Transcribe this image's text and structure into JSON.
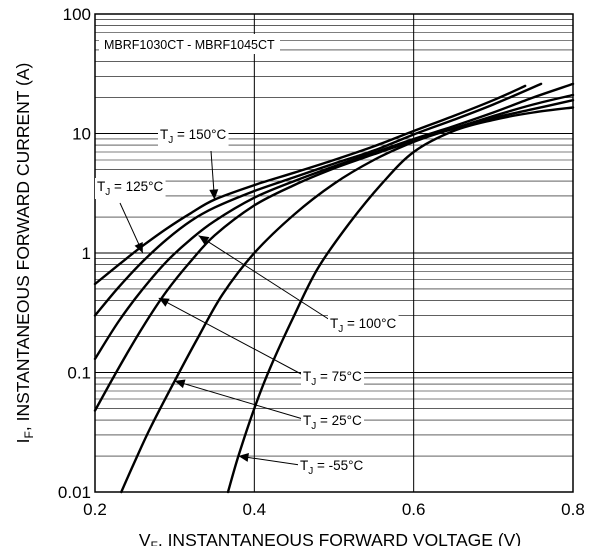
{
  "chart_data": {
    "type": "line",
    "title": "MBRF1030CT - MBRF1045CT",
    "xlabel": {
      "main": "V",
      "sub": "F",
      "rest": ", INSTANTANEOUS FORWARD VOLTAGE (V)"
    },
    "ylabel": {
      "main": "I",
      "sub": "F",
      "rest": ", INSTANTANEOUS FORWARD CURRENT (A)"
    },
    "xlim": [
      0.2,
      0.8
    ],
    "ylim": [
      0.01,
      100
    ],
    "yscale": "log",
    "grid": true,
    "x_ticks": [
      "0.2",
      "0.4",
      "0.6",
      "0.8"
    ],
    "y_ticks": [
      "0.01",
      "0.1",
      "1",
      "10",
      "100"
    ],
    "series": [
      {
        "name": "T_J = 150°C",
        "label": {
          "pre": "T",
          "sub": "J",
          "post": " = 150°C"
        },
        "points": [
          [
            0.2,
            0.55
          ],
          [
            0.23,
            0.8
          ],
          [
            0.26,
            1.15
          ],
          [
            0.29,
            1.6
          ],
          [
            0.32,
            2.15
          ],
          [
            0.35,
            2.8
          ],
          [
            0.4,
            3.7
          ],
          [
            0.45,
            4.7
          ],
          [
            0.5,
            6.0
          ],
          [
            0.55,
            7.8
          ],
          [
            0.6,
            10.5
          ],
          [
            0.65,
            14
          ],
          [
            0.7,
            19
          ],
          [
            0.74,
            25
          ]
        ]
      },
      {
        "name": "T_J = 125°C",
        "label": {
          "pre": "T",
          "sub": "J",
          "post": " = 125°C"
        },
        "points": [
          [
            0.2,
            0.3
          ],
          [
            0.23,
            0.52
          ],
          [
            0.26,
            0.85
          ],
          [
            0.29,
            1.3
          ],
          [
            0.32,
            1.85
          ],
          [
            0.35,
            2.4
          ],
          [
            0.4,
            3.3
          ],
          [
            0.45,
            4.3
          ],
          [
            0.5,
            5.6
          ],
          [
            0.55,
            7.2
          ],
          [
            0.6,
            9.8
          ],
          [
            0.65,
            13
          ],
          [
            0.7,
            17.5
          ],
          [
            0.76,
            26
          ]
        ]
      },
      {
        "name": "T_J = 100°C",
        "label": {
          "pre": "T",
          "sub": "J",
          "post": " = 100°C"
        },
        "points": [
          [
            0.2,
            0.13
          ],
          [
            0.23,
            0.27
          ],
          [
            0.26,
            0.5
          ],
          [
            0.29,
            0.85
          ],
          [
            0.32,
            1.3
          ],
          [
            0.35,
            1.85
          ],
          [
            0.4,
            2.9
          ],
          [
            0.45,
            4.0
          ],
          [
            0.5,
            5.3
          ],
          [
            0.55,
            6.9
          ],
          [
            0.6,
            9.0
          ],
          [
            0.65,
            11.5
          ],
          [
            0.7,
            15
          ],
          [
            0.75,
            20
          ],
          [
            0.8,
            26
          ]
        ]
      },
      {
        "name": "T_J = 75°C",
        "label": {
          "pre": "T",
          "sub": "J",
          "post": " = 75°C"
        },
        "points": [
          [
            0.2,
            0.048
          ],
          [
            0.23,
            0.11
          ],
          [
            0.26,
            0.24
          ],
          [
            0.29,
            0.48
          ],
          [
            0.32,
            0.85
          ],
          [
            0.35,
            1.4
          ],
          [
            0.4,
            2.5
          ],
          [
            0.45,
            3.7
          ],
          [
            0.5,
            5.1
          ],
          [
            0.55,
            6.7
          ],
          [
            0.6,
            8.7
          ],
          [
            0.65,
            11
          ],
          [
            0.7,
            14
          ],
          [
            0.75,
            17.5
          ],
          [
            0.8,
            21
          ]
        ]
      },
      {
        "name": "T_J = 25°C",
        "label": {
          "pre": "T",
          "sub": "J",
          "post": " = 25°C"
        },
        "points": [
          [
            0.233,
            0.01
          ],
          [
            0.25,
            0.018
          ],
          [
            0.27,
            0.035
          ],
          [
            0.3,
            0.085
          ],
          [
            0.33,
            0.2
          ],
          [
            0.36,
            0.45
          ],
          [
            0.4,
            1.0
          ],
          [
            0.45,
            2.1
          ],
          [
            0.5,
            3.8
          ],
          [
            0.55,
            6.0
          ],
          [
            0.6,
            8.5
          ],
          [
            0.65,
            11
          ],
          [
            0.7,
            13.5
          ],
          [
            0.75,
            16
          ],
          [
            0.8,
            19
          ]
        ]
      },
      {
        "name": "T_J = -55°C",
        "label": {
          "pre": "T",
          "sub": "J",
          "post": " = -55°C"
        },
        "points": [
          [
            0.367,
            0.01
          ],
          [
            0.38,
            0.02
          ],
          [
            0.4,
            0.05
          ],
          [
            0.42,
            0.11
          ],
          [
            0.45,
            0.3
          ],
          [
            0.48,
            0.75
          ],
          [
            0.52,
            1.8
          ],
          [
            0.56,
            3.8
          ],
          [
            0.6,
            7.0
          ],
          [
            0.65,
            10.5
          ],
          [
            0.7,
            13
          ],
          [
            0.75,
            15
          ],
          [
            0.8,
            16.5
          ]
        ]
      }
    ],
    "annotations": [
      {
        "series": 0,
        "at": [
          0.35,
          2.8
        ]
      },
      {
        "series": 1,
        "at": [
          0.26,
          1.0
        ]
      },
      {
        "series": 2,
        "at": [
          0.33,
          1.4
        ]
      },
      {
        "series": 3,
        "at": [
          0.28,
          0.42
        ]
      },
      {
        "series": 4,
        "at": [
          0.3,
          0.085
        ]
      },
      {
        "series": 5,
        "at": [
          0.38,
          0.02
        ]
      }
    ]
  }
}
